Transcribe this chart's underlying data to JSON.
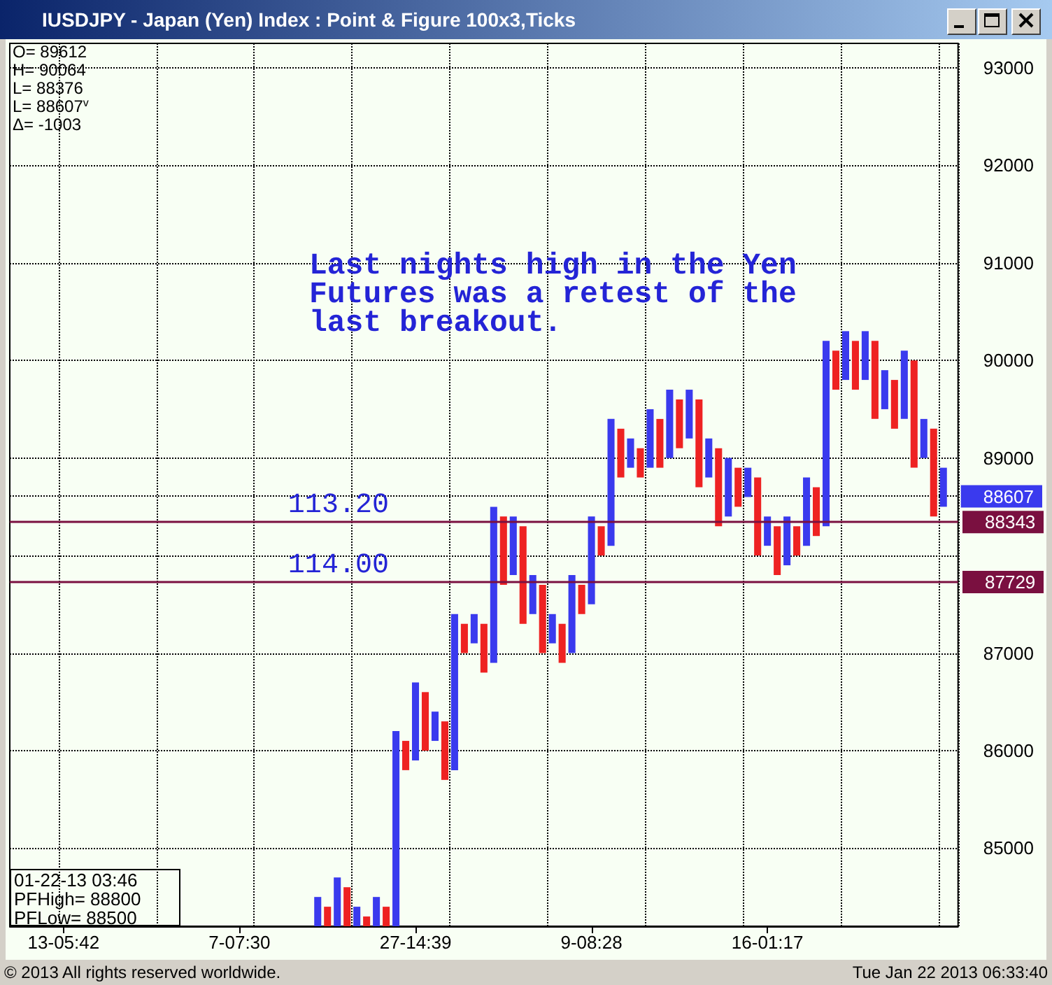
{
  "chart_data": {
    "type": "bar",
    "title": "IUSDJPY - Japan (Yen) Index : Point & Figure 100x3,Ticks",
    "categories": [
      null,
      null,
      null,
      null,
      null,
      "13-05:42",
      null,
      null,
      null,
      null,
      null,
      null,
      null,
      null,
      null,
      null,
      null,
      null,
      null,
      null,
      null,
      null,
      null,
      "7-07:30",
      null,
      null,
      null,
      null,
      null,
      null,
      null,
      null,
      null,
      null,
      null,
      null,
      null,
      null,
      null,
      null,
      null,
      "27-14:39",
      null,
      null,
      null,
      null,
      null,
      null,
      null,
      null,
      null,
      null,
      null,
      null,
      null,
      null,
      null,
      null,
      null,
      "9-08:28",
      null,
      null,
      null,
      null,
      null,
      null,
      null,
      null,
      null,
      null,
      null,
      null,
      null,
      null,
      null,
      null,
      null,
      "16-01:17",
      null,
      null,
      null,
      null,
      null,
      null,
      null,
      null,
      null,
      null,
      null,
      null,
      null,
      null,
      null,
      null,
      null,
      null,
      null
    ],
    "series": [
      {
        "color": "#3a3aee",
        "base": [
          null,
          null,
          null,
          null,
          null,
          null,
          null,
          null,
          null,
          null,
          null,
          null,
          null,
          null,
          null,
          null,
          null,
          null,
          null,
          null,
          null,
          null,
          null,
          null,
          null,
          null,
          null,
          null,
          null,
          null,
          null,
          84200,
          null,
          84200,
          null,
          84200,
          null,
          84200,
          null,
          84200,
          null,
          85900,
          null,
          86100,
          null,
          85800,
          null,
          87100,
          null,
          86900,
          null,
          87800,
          null,
          87400,
          null,
          87100,
          null,
          87000,
          null,
          87500,
          null,
          88100,
          null,
          88900,
          null,
          88900,
          null,
          89000,
          null,
          89200,
          null,
          88800,
          null,
          88400,
          null,
          88600,
          null,
          88100,
          null,
          87900,
          null,
          88100,
          null,
          88300,
          null,
          89800,
          null,
          89800,
          null,
          89500,
          null,
          89400,
          null,
          89000,
          null,
          88500,
          null
        ],
        "values": [
          null,
          null,
          null,
          null,
          null,
          null,
          null,
          null,
          null,
          null,
          null,
          null,
          null,
          null,
          null,
          null,
          null,
          null,
          null,
          null,
          null,
          null,
          null,
          null,
          null,
          null,
          null,
          null,
          null,
          null,
          null,
          300,
          null,
          500,
          null,
          200,
          null,
          300,
          null,
          2000,
          null,
          800,
          null,
          300,
          null,
          1600,
          null,
          300,
          null,
          1600,
          null,
          600,
          null,
          400,
          null,
          300,
          null,
          800,
          null,
          900,
          null,
          1300,
          null,
          300,
          null,
          600,
          null,
          700,
          null,
          500,
          null,
          400,
          null,
          600,
          null,
          300,
          null,
          300,
          null,
          500,
          null,
          700,
          null,
          1900,
          null,
          500,
          null,
          500,
          null,
          400,
          null,
          700,
          null,
          400,
          null,
          400,
          null
        ]
      },
      {
        "color": "#ee2222",
        "base": [
          null,
          null,
          null,
          null,
          null,
          null,
          null,
          null,
          null,
          null,
          null,
          null,
          null,
          null,
          null,
          null,
          null,
          null,
          null,
          null,
          null,
          null,
          null,
          null,
          null,
          null,
          null,
          null,
          null,
          null,
          null,
          null,
          84200,
          null,
          84200,
          null,
          84200,
          null,
          84200,
          null,
          85800,
          null,
          86000,
          null,
          85700,
          null,
          87000,
          null,
          86800,
          null,
          87700,
          null,
          87300,
          null,
          87000,
          null,
          86900,
          null,
          87400,
          null,
          88000,
          null,
          88800,
          null,
          88800,
          null,
          88900,
          null,
          89100,
          null,
          88700,
          null,
          88300,
          null,
          88500,
          null,
          88000,
          null,
          87800,
          null,
          88000,
          null,
          88200,
          null,
          89700,
          null,
          89700,
          null,
          89400,
          null,
          89300,
          null,
          88900,
          null,
          88400,
          null,
          null
        ],
        "values": [
          null,
          null,
          null,
          null,
          null,
          null,
          null,
          null,
          null,
          null,
          null,
          null,
          null,
          null,
          null,
          null,
          null,
          null,
          null,
          null,
          null,
          null,
          null,
          null,
          null,
          null,
          null,
          null,
          null,
          null,
          null,
          null,
          200,
          null,
          400,
          null,
          100,
          null,
          200,
          null,
          300,
          null,
          600,
          null,
          600,
          null,
          300,
          null,
          500,
          null,
          700,
          null,
          1000,
          null,
          700,
          null,
          400,
          null,
          300,
          null,
          300,
          null,
          500,
          null,
          300,
          null,
          500,
          null,
          500,
          null,
          900,
          null,
          800,
          null,
          400,
          null,
          800,
          null,
          500,
          null,
          300,
          null,
          500,
          null,
          400,
          null,
          500,
          null,
          800,
          null,
          500,
          null,
          1100,
          null,
          900,
          null,
          null
        ]
      }
    ],
    "ylim": [
      84200,
      93250
    ],
    "yticks": [
      85000,
      86000,
      87000,
      {
        "value": 88000,
        "label": null
      },
      88607,
      89000,
      90000,
      91000,
      92000,
      93000
    ],
    "grid": true,
    "ref_lines": [
      {
        "axis": "y",
        "value": 88343,
        "label": "88343",
        "color": "#7a1040"
      },
      {
        "axis": "y",
        "value": 87729,
        "label": "87729",
        "color": "#7a1040"
      }
    ],
    "annotations": [
      "O= 89612",
      "H= 90064",
      "L= 88376",
      "L= 88607$^{v}$",
      "Δ= -1003",
      "01-22-13 03:46",
      "PFHigh= 88800",
      "PFLow= 88500",
      "Last nights high in the Yen\nFutures was a retest of the\nlast breakout.",
      "113.20",
      "114.00",
      "© 2013 All rights reserved worldwide.",
      "Tue Jan 22 2013 06:33:40"
    ]
  }
}
